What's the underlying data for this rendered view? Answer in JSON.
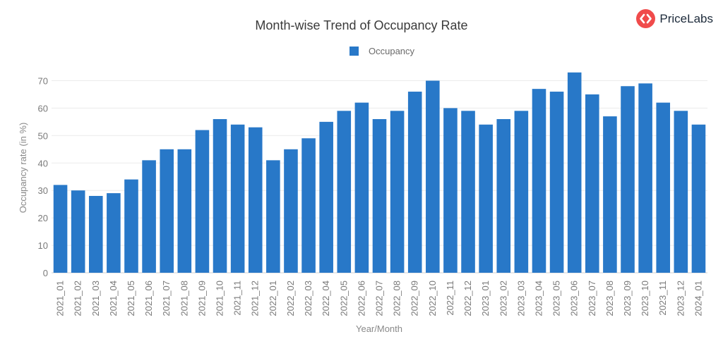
{
  "brand": {
    "name": "PriceLabs",
    "accent": "#f04b4b"
  },
  "chart_data": {
    "type": "bar",
    "title": "Month-wise Trend of Occupancy Rate",
    "xlabel": "Year/Month",
    "ylabel": "Occupancy rate (in %)",
    "ylim": [
      0,
      75
    ],
    "yticks": [
      0,
      10,
      20,
      30,
      40,
      50,
      60,
      70
    ],
    "grid": true,
    "legend": "top-center",
    "categories": [
      "2021_01",
      "2021_02",
      "2021_03",
      "2021_04",
      "2021_05",
      "2021_06",
      "2021_07",
      "2021_08",
      "2021_09",
      "2021_10",
      "2021_11",
      "2021_12",
      "2022_01",
      "2022_02",
      "2022_03",
      "2022_04",
      "2022_05",
      "2022_06",
      "2022_07",
      "2022_08",
      "2022_09",
      "2022_10",
      "2022_11",
      "2022_12",
      "2023_01",
      "2023_02",
      "2023_03",
      "2023_04",
      "2023_05",
      "2023_06",
      "2023_07",
      "2023_08",
      "2023_09",
      "2023_10",
      "2023_11",
      "2023_12",
      "2024_01"
    ],
    "series": [
      {
        "name": "Occupancy",
        "color": "#2878c8",
        "values": [
          32,
          30,
          28,
          29,
          34,
          41,
          45,
          45,
          52,
          56,
          54,
          53,
          41,
          45,
          49,
          55,
          59,
          62,
          56,
          59,
          66,
          70,
          60,
          59,
          54,
          56,
          59,
          67,
          66,
          73,
          65,
          57,
          68,
          69,
          62,
          59,
          54
        ]
      }
    ]
  }
}
